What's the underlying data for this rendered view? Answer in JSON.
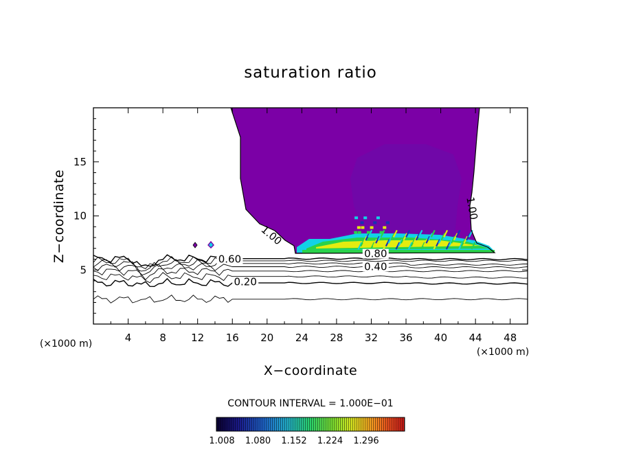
{
  "chart_data": {
    "type": "contour",
    "title": "saturation ratio",
    "xlabel": "X−coordinate",
    "ylabel": "Z−coordinate",
    "x_unit": "(×1000 m)",
    "y_unit": "(×1000 m)",
    "xlim": [
      0,
      50
    ],
    "ylim": [
      0,
      20
    ],
    "x_ticks": [
      4,
      8,
      12,
      16,
      20,
      24,
      28,
      32,
      36,
      40,
      44,
      48
    ],
    "y_ticks": [
      5,
      10,
      15
    ],
    "contour_interval_text": "CONTOUR INTERVAL = 1.000E−01",
    "contour_labels": [
      {
        "text": "0.20",
        "x": 17.5,
        "z": 3.9
      },
      {
        "text": "0.40",
        "x": 32.5,
        "z": 5.3
      },
      {
        "text": "0.60",
        "x": 15.7,
        "z": 6.0
      },
      {
        "text": "0.80",
        "x": 32.5,
        "z": 6.5
      },
      {
        "text": "1.00",
        "x": 20.5,
        "z": 8.2,
        "rotate": 40
      },
      {
        "text": "1.00",
        "x": 43.6,
        "z": 10.7,
        "rotate": 80
      }
    ],
    "contour_lines_z": [
      2.3,
      3.8,
      4.4,
      4.9,
      5.3,
      5.6,
      5.85,
      6.05
    ],
    "colorbar": {
      "ticks": [
        "1.008",
        "1.080",
        "1.152",
        "1.224",
        "1.296"
      ],
      "colors": [
        "#0a0030",
        "#1a1a8a",
        "#1e63c8",
        "#22b0c8",
        "#2ad06a",
        "#7ee030",
        "#d8e420",
        "#f4a020",
        "#e84a1e",
        "#c41818"
      ]
    },
    "fill_colors": {
      "supersaturated_base": "#7b00a6",
      "core": "#6e08a8",
      "cyan": "#12d2e6",
      "green": "#2ad24a",
      "yellow": "#e4ec10",
      "blue": "#1830b4"
    }
  }
}
